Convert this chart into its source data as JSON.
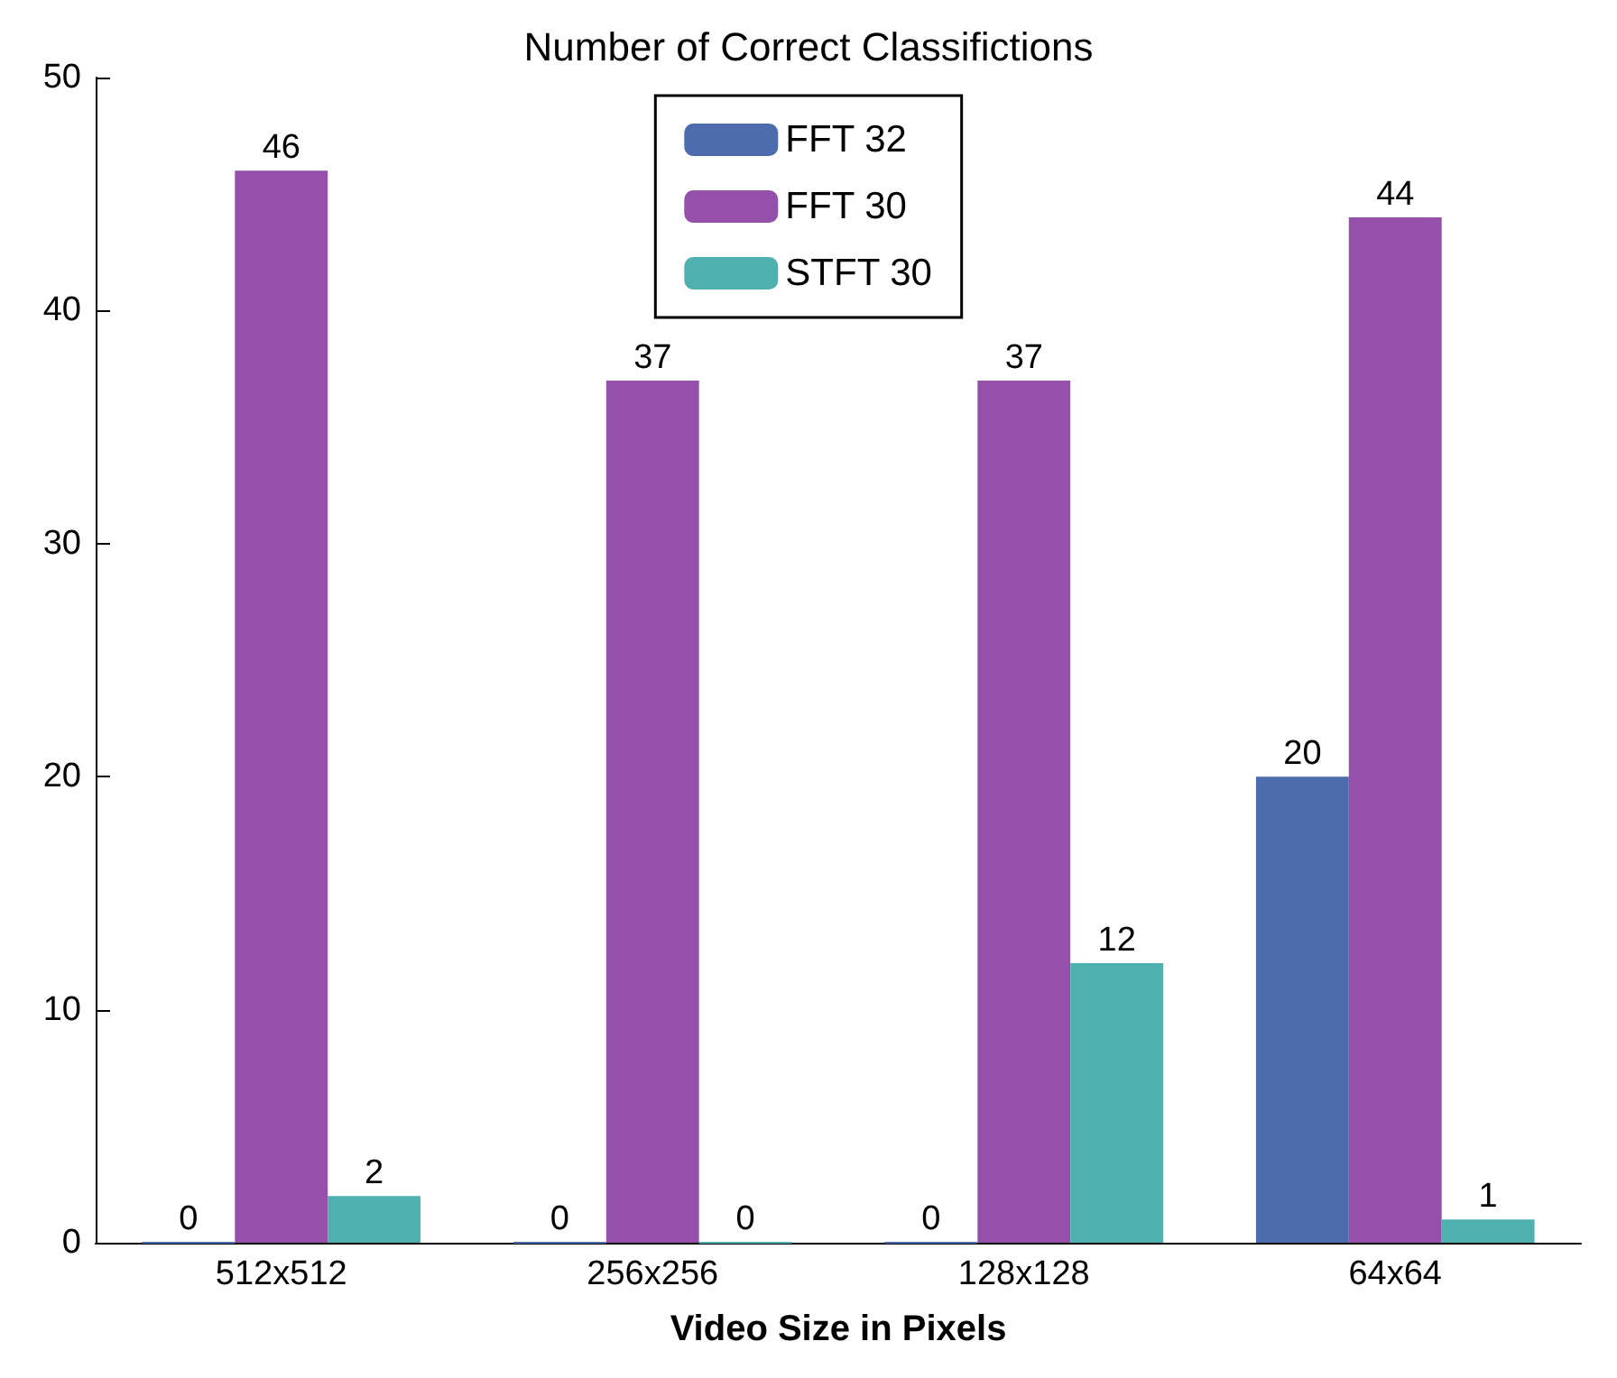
{
  "chart_data": {
    "type": "bar",
    "title": "Number of Correct Classifictions",
    "xlabel": "Video Size in Pixels",
    "categories": [
      "512x512",
      "256x256",
      "128x128",
      "64x64"
    ],
    "series": [
      {
        "name": "FFT 32",
        "color": "#4c6cad",
        "values": [
          0,
          0,
          0,
          20
        ]
      },
      {
        "name": "FFT 30",
        "color": "#9450ab",
        "values": [
          46,
          37,
          37,
          44
        ]
      },
      {
        "name": "STFT 30",
        "color": "#4fb0b0",
        "values": [
          2,
          0,
          12,
          1
        ]
      }
    ],
    "ylim": [
      0,
      50
    ],
    "yticks": [
      0,
      10,
      20,
      30,
      40,
      50
    ],
    "grid": false,
    "legend": "top",
    "data_labels": true
  }
}
